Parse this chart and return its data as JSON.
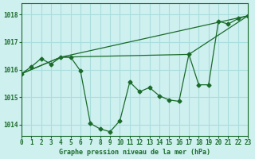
{
  "xlabel": "Graphe pression niveau de la mer (hPa)",
  "background_color": "#cef0ef",
  "grid_color": "#aadddd",
  "line_color": "#1a6b2a",
  "xlim": [
    0,
    23
  ],
  "ylim": [
    1013.6,
    1018.4
  ],
  "yticks": [
    1014,
    1015,
    1016,
    1017,
    1018
  ],
  "xticks": [
    0,
    1,
    2,
    3,
    4,
    5,
    6,
    7,
    8,
    9,
    10,
    11,
    12,
    13,
    14,
    15,
    16,
    17,
    18,
    19,
    20,
    21,
    22,
    23
  ],
  "series1_x": [
    0,
    1,
    2,
    3,
    4,
    5,
    6,
    7,
    8,
    9,
    10,
    11,
    12,
    13,
    14,
    15,
    16,
    17,
    18,
    19,
    20,
    21,
    22,
    23
  ],
  "series1_y": [
    1015.85,
    1016.1,
    1016.4,
    1016.2,
    1016.45,
    1016.45,
    1015.95,
    1014.05,
    1013.85,
    1013.75,
    1014.15,
    1015.55,
    1015.2,
    1015.35,
    1015.05,
    1014.9,
    1014.85,
    1016.55,
    1015.45,
    1015.45,
    1017.75,
    1017.65,
    1017.85,
    1017.95
  ],
  "series2_x": [
    0,
    4,
    23
  ],
  "series2_y": [
    1015.85,
    1016.45,
    1017.95
  ],
  "series3_x": [
    0,
    4,
    17,
    23
  ],
  "series3_y": [
    1015.85,
    1016.45,
    1016.55,
    1017.95
  ]
}
